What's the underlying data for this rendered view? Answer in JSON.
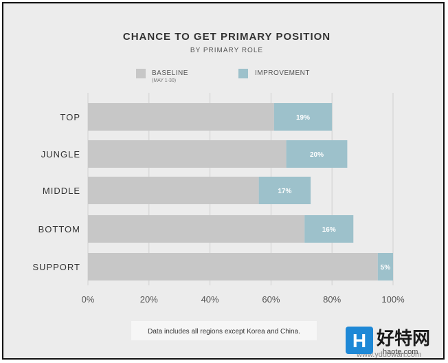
{
  "chart_data": {
    "type": "bar",
    "orientation": "horizontal",
    "stacked": true,
    "title": "CHANCE TO GET PRIMARY POSITION",
    "subtitle": "BY PRIMARY ROLE",
    "categories": [
      "TOP",
      "JUNGLE",
      "MIDDLE",
      "BOTTOM",
      "SUPPORT"
    ],
    "series": [
      {
        "name": "BASELINE",
        "sublabel": "(MAY 1-30)",
        "color": "#c7c7c7",
        "values": [
          61,
          65,
          56,
          71,
          95
        ]
      },
      {
        "name": "IMPROVEMENT",
        "color": "#9dc1cb",
        "values": [
          19,
          20,
          17,
          16,
          5
        ]
      }
    ],
    "data_labels": [
      "19%",
      "20%",
      "17%",
      "16%",
      "5%"
    ],
    "xlim": [
      0,
      100
    ],
    "x_ticks": [
      "0%",
      "20%",
      "40%",
      "60%",
      "80%",
      "100%"
    ],
    "grid": true,
    "legend_position": "top",
    "note": "Data includes all regions except Korea and China."
  },
  "watermark": {
    "logo_letter": "H",
    "cn_text": "好特网",
    "url": "haote.com",
    "faint_url": "www.yduowan.com"
  }
}
